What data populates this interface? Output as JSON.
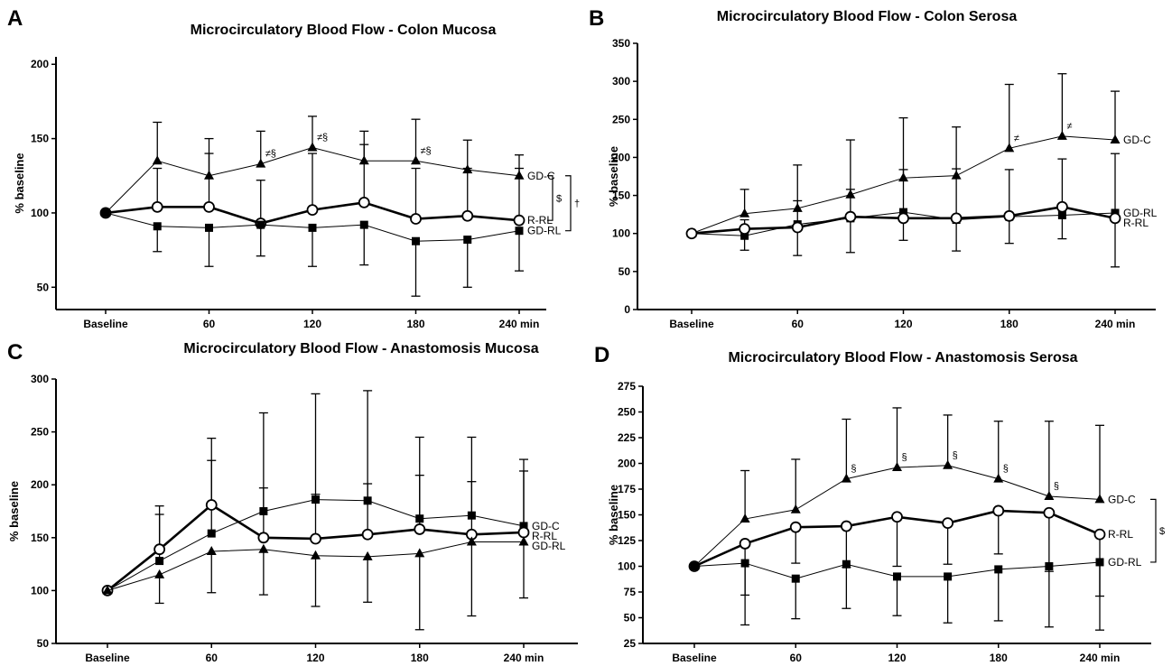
{
  "chart_data": [
    {
      "type": "line",
      "panel_label": "A",
      "title": "Microcirculatory Blood Flow - Colon Mucosa",
      "ylabel": "% baseline",
      "xlabel": "",
      "x_tick_labels": [
        "Baseline",
        "60",
        "120",
        "180",
        "240 min"
      ],
      "x": [
        0,
        30,
        60,
        90,
        120,
        150,
        180,
        210,
        240
      ],
      "ylim": [
        35,
        205
      ],
      "yticks": [
        50,
        100,
        150,
        200
      ],
      "series": [
        {
          "name": "GD-C",
          "marker": "triangle",
          "line": "thin",
          "values": [
            100,
            135,
            125,
            133,
            144,
            135,
            135,
            129,
            125
          ],
          "error_upper": [
            null,
            161,
            150,
            155,
            165,
            155,
            163,
            149,
            139
          ],
          "error_lower": [
            null,
            null,
            null,
            null,
            null,
            null,
            null,
            null,
            null
          ]
        },
        {
          "name": "R-RL",
          "marker": "circle",
          "line": "thick",
          "values": [
            100,
            104,
            104,
            93,
            102,
            107,
            96,
            98,
            95
          ],
          "error_upper": [
            null,
            130,
            140,
            122,
            140,
            146,
            130,
            130,
            130
          ],
          "error_lower": [
            null,
            null,
            null,
            null,
            null,
            null,
            null,
            null,
            null
          ]
        },
        {
          "name": "GD-RL",
          "marker": "square",
          "line": "thin",
          "values": [
            100,
            91,
            90,
            92,
            90,
            92,
            81,
            82,
            88
          ],
          "error_upper": [
            null,
            null,
            null,
            null,
            null,
            null,
            null,
            null,
            null
          ],
          "error_lower": [
            null,
            74,
            64,
            71,
            64,
            65,
            44,
            50,
            61
          ]
        }
      ],
      "point_annotations": [
        {
          "series": "GD-C",
          "x": 90,
          "text": "≠§"
        },
        {
          "series": "GD-C",
          "x": 120,
          "text": "≠§"
        },
        {
          "series": "GD-C",
          "x": 180,
          "text": "≠§"
        }
      ],
      "brackets": [
        {
          "text": "$",
          "from": "GD-C",
          "to": "R-RL"
        },
        {
          "text": "†",
          "from": "GD-C",
          "to": "GD-RL"
        }
      ]
    },
    {
      "type": "line",
      "panel_label": "B",
      "title": "Microcirculatory Blood Flow - Colon Serosa",
      "ylabel": "% baseline",
      "xlabel": "",
      "x_tick_labels": [
        "Baseline",
        "60",
        "120",
        "180",
        "240 min"
      ],
      "x": [
        0,
        30,
        60,
        90,
        120,
        150,
        180,
        210,
        240
      ],
      "ylim": [
        0,
        350
      ],
      "yticks": [
        0,
        50,
        100,
        150,
        200,
        250,
        300,
        350
      ],
      "series": [
        {
          "name": "GD-C",
          "marker": "triangle",
          "line": "thin",
          "values": [
            100,
            126,
            133,
            151,
            173,
            176,
            212,
            228,
            223
          ],
          "error_upper": [
            null,
            158,
            190,
            223,
            252,
            240,
            296,
            310,
            287
          ],
          "error_lower": [
            null,
            null,
            null,
            null,
            null,
            null,
            null,
            null,
            null
          ]
        },
        {
          "name": "GD-RL",
          "marker": "square",
          "line": "thin",
          "values": [
            100,
            97,
            112,
            120,
            128,
            118,
            122,
            124,
            127
          ],
          "error_upper": [
            null,
            null,
            null,
            null,
            null,
            null,
            null,
            null,
            205
          ],
          "error_lower": [
            null,
            78,
            71,
            75,
            91,
            77,
            87,
            93,
            56
          ]
        },
        {
          "name": "R-RL",
          "marker": "circle",
          "line": "thick",
          "values": [
            100,
            106,
            108,
            122,
            120,
            120,
            123,
            135,
            120
          ],
          "error_upper": [
            null,
            118,
            143,
            158,
            184,
            185,
            184,
            198,
            null
          ],
          "error_lower": [
            null,
            null,
            null,
            null,
            null,
            null,
            null,
            null,
            null
          ]
        }
      ],
      "point_annotations": [
        {
          "series": "GD-C",
          "x": 180,
          "text": "≠"
        },
        {
          "series": "GD-C",
          "x": 210,
          "text": "≠"
        }
      ],
      "brackets": []
    },
    {
      "type": "line",
      "panel_label": "C",
      "title": "Microcirculatory Blood Flow - Anastomosis Mucosa",
      "ylabel": "% baseline",
      "xlabel": "",
      "x_tick_labels": [
        "Baseline",
        "60",
        "120",
        "180",
        "240 min"
      ],
      "x": [
        0,
        30,
        60,
        90,
        120,
        150,
        180,
        210,
        240
      ],
      "ylim": [
        50,
        300
      ],
      "yticks": [
        50,
        100,
        150,
        200,
        250,
        300
      ],
      "series": [
        {
          "name": "GD-C",
          "marker": "square",
          "line": "thin",
          "values": [
            100,
            128,
            154,
            175,
            186,
            185,
            168,
            171,
            161
          ],
          "error_upper": [
            null,
            172,
            223,
            268,
            286,
            289,
            245,
            245,
            224
          ],
          "error_lower": [
            null,
            null,
            null,
            null,
            null,
            null,
            null,
            null,
            null
          ]
        },
        {
          "name": "R-RL",
          "marker": "circle",
          "line": "thick",
          "values": [
            100,
            139,
            181,
            150,
            149,
            153,
            158,
            153,
            155
          ],
          "error_upper": [
            null,
            180,
            244,
            197,
            191,
            201,
            209,
            203,
            213
          ],
          "error_lower": [
            null,
            null,
            null,
            null,
            null,
            null,
            null,
            null,
            null
          ]
        },
        {
          "name": "GD-RL",
          "marker": "triangle",
          "line": "thin",
          "values": [
            100,
            115,
            137,
            139,
            133,
            132,
            135,
            146,
            146
          ],
          "error_upper": [
            null,
            null,
            null,
            null,
            null,
            null,
            null,
            null,
            null
          ],
          "error_lower": [
            null,
            88,
            98,
            96,
            85,
            89,
            63,
            76,
            93
          ]
        }
      ],
      "point_annotations": [],
      "brackets": []
    },
    {
      "type": "line",
      "panel_label": "D",
      "title": "Microcirculatory Blood Flow - Anastomosis Serosa",
      "ylabel": "% baseline",
      "xlabel": "",
      "x_tick_labels": [
        "Baseline",
        "60",
        "120",
        "180",
        "240 min"
      ],
      "x": [
        0,
        30,
        60,
        90,
        120,
        150,
        180,
        210,
        240
      ],
      "ylim": [
        25,
        275
      ],
      "yticks": [
        25,
        50,
        75,
        100,
        125,
        150,
        175,
        200,
        225,
        250,
        275
      ],
      "series": [
        {
          "name": "GD-C",
          "marker": "triangle",
          "line": "thin",
          "values": [
            100,
            146,
            155,
            185,
            196,
            198,
            185,
            168,
            165
          ],
          "error_upper": [
            null,
            193,
            204,
            243,
            254,
            247,
            241,
            241,
            237
          ],
          "error_lower": [
            null,
            null,
            null,
            null,
            null,
            null,
            null,
            null,
            null
          ]
        },
        {
          "name": "R-RL",
          "marker": "circle",
          "line": "thick",
          "values": [
            100,
            122,
            138,
            139,
            148,
            142,
            154,
            152,
            131
          ],
          "error_upper": [
            null,
            null,
            null,
            null,
            null,
            null,
            null,
            null,
            null
          ],
          "error_lower": [
            null,
            72,
            103,
            99,
            100,
            102,
            112,
            95,
            71
          ]
        },
        {
          "name": "GD-RL",
          "marker": "square",
          "line": "thin",
          "values": [
            100,
            103,
            88,
            102,
            90,
            90,
            97,
            100,
            104
          ],
          "error_upper": [
            null,
            null,
            null,
            null,
            null,
            null,
            null,
            null,
            null
          ],
          "error_lower": [
            null,
            43,
            49,
            59,
            52,
            45,
            47,
            41,
            38
          ]
        }
      ],
      "point_annotations": [
        {
          "series": "GD-C",
          "x": 90,
          "text": "§"
        },
        {
          "series": "GD-C",
          "x": 120,
          "text": "§"
        },
        {
          "series": "GD-C",
          "x": 150,
          "text": "§"
        },
        {
          "series": "GD-C",
          "x": 180,
          "text": "§"
        },
        {
          "series": "GD-C",
          "x": 210,
          "text": "§"
        }
      ],
      "brackets": [
        {
          "text": "$",
          "from": "GD-C",
          "to": "GD-RL"
        }
      ]
    }
  ]
}
